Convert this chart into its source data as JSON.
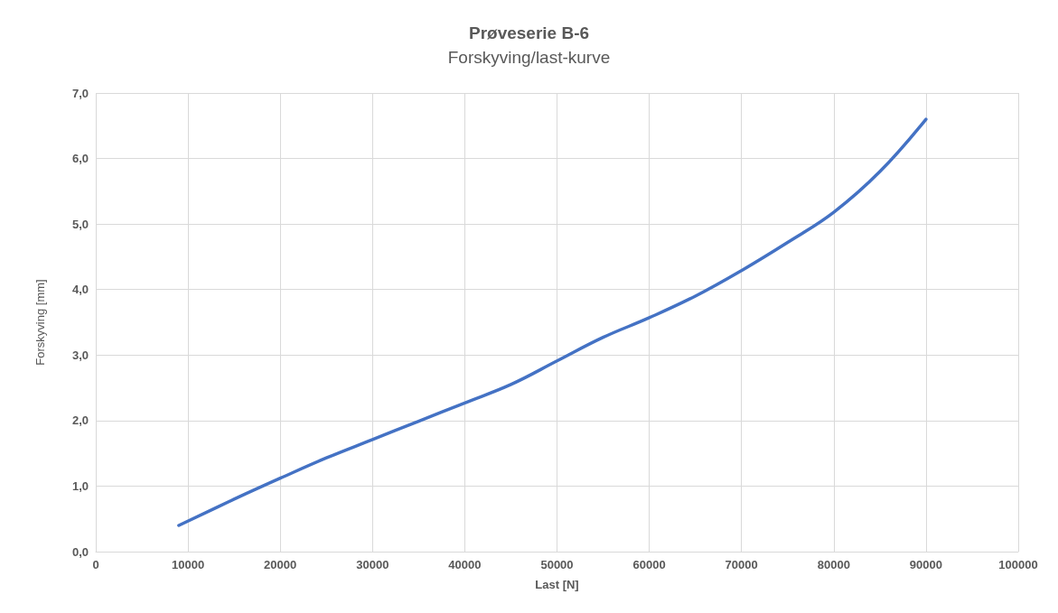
{
  "chart_data": {
    "type": "line",
    "title": "Prøveserie B-6",
    "subtitle": "Forskyving/last-kurve",
    "xlabel": "Last [N]",
    "ylabel": "Forskyving [mm]",
    "x": [
      9000,
      15000,
      20000,
      25000,
      30000,
      35000,
      40000,
      45000,
      50000,
      55000,
      60000,
      65000,
      70000,
      75000,
      80000,
      85000,
      90000
    ],
    "series": [
      {
        "color": "#4472c4",
        "values": [
          0.4,
          0.8,
          1.12,
          1.43,
          1.71,
          1.99,
          2.27,
          2.55,
          2.91,
          3.27,
          3.57,
          3.9,
          4.29,
          4.72,
          5.18,
          5.8,
          6.6
        ]
      }
    ],
    "xlim": [
      0,
      100000
    ],
    "xticks": [
      0,
      10000,
      20000,
      30000,
      40000,
      50000,
      60000,
      70000,
      80000,
      90000,
      100000
    ],
    "ylim": [
      0,
      7
    ],
    "yticks": [
      {
        "value": 0,
        "label": "0,0"
      },
      {
        "value": 1,
        "label": "1,0"
      },
      {
        "value": 2,
        "label": "2,0"
      },
      {
        "value": 3,
        "label": "3,0"
      },
      {
        "value": 4,
        "label": "4,0"
      },
      {
        "value": 5,
        "label": "5,0"
      },
      {
        "value": 6,
        "label": "6,0"
      },
      {
        "value": 7,
        "label": "7,0"
      }
    ],
    "grid": true,
    "marker": "none",
    "line_style": "solid"
  }
}
